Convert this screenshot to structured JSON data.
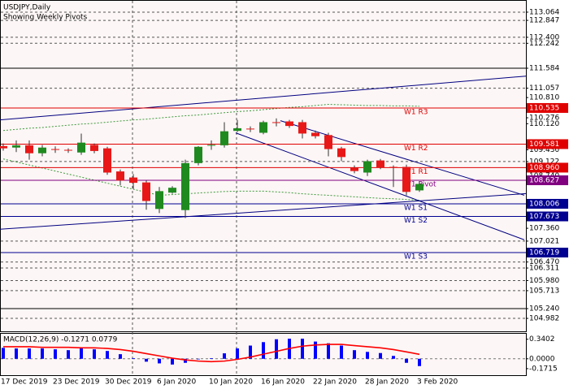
{
  "chart_data": [
    {
      "type": "candlestick",
      "title": "USDJPY,Daily",
      "subtitle": "Showing Weekly Pivots",
      "categories": [
        "17 Dec 2019",
        null,
        null,
        null,
        "23 Dec 2019",
        null,
        null,
        null,
        "30 Dec 2019",
        null,
        null,
        null,
        "6 Jan 2020",
        null,
        null,
        null,
        "10 Jan 2020",
        null,
        null,
        null,
        "16 Jan 2020",
        null,
        null,
        null,
        "22 Jan 2020",
        null,
        null,
        null,
        "28 Jan 2020",
        null,
        null,
        null,
        "3 Feb 2020"
      ],
      "open": [
        109.53,
        109.49,
        109.55,
        109.34,
        109.45,
        109.43,
        109.36,
        109.56,
        109.47,
        108.86,
        108.7,
        108.57,
        107.87,
        108.3,
        107.84,
        109.08,
        109.55,
        109.55,
        109.93,
        109.99,
        109.88,
        110.16,
        110.18,
        110.16,
        109.88,
        109.82,
        109.47,
        108.96,
        108.83,
        109.15,
        108.98,
        108.98,
        108.36
      ],
      "high": [
        109.6,
        109.68,
        109.68,
        109.56,
        109.52,
        109.47,
        109.86,
        109.6,
        109.51,
        108.91,
        108.79,
        108.62,
        108.45,
        108.47,
        109.17,
        109.53,
        109.68,
        110.16,
        110.22,
        110.05,
        110.2,
        110.26,
        110.22,
        110.22,
        109.94,
        109.88,
        109.51,
        109.02,
        109.17,
        109.19,
        109.02,
        109.04,
        108.59
      ],
      "low": [
        109.41,
        109.37,
        109.17,
        109.26,
        109.35,
        109.35,
        109.3,
        109.34,
        108.77,
        108.49,
        108.4,
        107.85,
        107.76,
        108.27,
        107.63,
        109.02,
        109.43,
        109.49,
        109.9,
        109.9,
        109.84,
        110.05,
        110.01,
        109.73,
        109.73,
        109.26,
        109.13,
        108.81,
        108.74,
        108.92,
        108.45,
        108.23,
        108.32
      ],
      "close": [
        109.47,
        109.55,
        109.34,
        109.49,
        109.43,
        109.41,
        109.62,
        109.4,
        108.83,
        108.62,
        108.56,
        108.08,
        108.34,
        108.43,
        109.08,
        109.51,
        109.56,
        109.92,
        110.0,
        109.97,
        110.16,
        110.14,
        110.06,
        109.86,
        109.79,
        109.45,
        109.24,
        108.87,
        109.13,
        108.96,
        108.96,
        108.32,
        108.53
      ],
      "up_color": "#1f8a1f",
      "down_color": "#e81818",
      "wick_color": "#333333",
      "ylim": [
        104.64,
        113.363
      ],
      "yticks": [
        113.064,
        112.847,
        {
          "value": 112.4,
          "label": "112.400"
        },
        112.242,
        111.584,
        111.057,
        {
          "value": 110.81,
          "label": "110.810"
        },
        110.276,
        {
          "value": 110.12,
          "label": "110.120"
        },
        {
          "value": 109.43,
          "label": "109.430"
        },
        109.122,
        {
          "value": 108.74,
          "label": "108.740"
        },
        {
          "value": 107.36,
          "label": "107.360"
        },
        107.021,
        {
          "value": 106.47,
          "label": "106.470"
        },
        106.311,
        {
          "value": 105.98,
          "label": "105.980"
        },
        105.713,
        {
          "value": 105.24,
          "label": "105.240"
        },
        104.982
      ],
      "hlines": [
        {
          "value": 113.064,
          "style": "dashed"
        },
        {
          "value": 112.847,
          "style": "dashed"
        },
        {
          "value": 112.4,
          "style": "dashed"
        },
        {
          "value": 112.242,
          "style": "dashed"
        },
        {
          "value": 111.584,
          "style": "solid"
        },
        {
          "value": 111.057,
          "style": "dashed"
        },
        {
          "value": 109.122,
          "style": "dashed"
        },
        {
          "value": 107.021,
          "style": "dashed"
        },
        {
          "value": 106.47,
          "style": "dashed"
        },
        {
          "value": 106.311,
          "style": "dashed"
        },
        {
          "value": 105.98,
          "style": "dashed"
        },
        {
          "value": 105.713,
          "style": "dashed"
        },
        {
          "value": 105.24,
          "style": "solid"
        },
        {
          "value": 104.982,
          "style": "dashed"
        }
      ],
      "pivots": [
        {
          "name": "W1 R3",
          "value": 110.535,
          "color": "#e00000"
        },
        {
          "name": "W1 R2",
          "value": 109.581,
          "color": "#e00000"
        },
        {
          "name": "W1 R1",
          "value": 108.96,
          "label": "108.960",
          "color": "#e00000"
        },
        {
          "name": "W1 Pivot",
          "value": 108.627,
          "color": "#800080"
        },
        {
          "name": "W1 S1",
          "value": 108.006,
          "color": "#000090"
        },
        {
          "name": "W1 S2",
          "value": 107.673,
          "color": "#000090"
        },
        {
          "name": "W1 S3",
          "value": 106.719,
          "color": "#000090"
        }
      ],
      "trendlines": [
        {
          "x": [
            -0.25,
            40.19
          ],
          "y": [
            110.22,
            111.375
          ],
          "color": "#00007f"
        },
        {
          "x": [
            -0.25,
            40.19
          ],
          "y": [
            107.334,
            108.275
          ],
          "color": "#00007f"
        },
        {
          "x": [
            17.875,
            40.06
          ],
          "y": [
            109.878,
            107.056
          ],
          "color": "#00007f"
        },
        {
          "x": [
            21.31,
            40.06
          ],
          "y": [
            110.199,
            108.232
          ],
          "color": "#00007f"
        }
      ],
      "envelopes": [
        {
          "color": "#3a9a3a",
          "values": [
            109.94,
            109.97,
            110.0,
            110.02,
            110.05,
            110.08,
            110.11,
            110.13,
            110.16,
            110.19,
            110.22,
            110.24,
            110.27,
            110.3,
            110.33,
            110.35,
            110.38,
            110.41,
            110.44,
            110.46,
            110.49,
            110.52,
            110.55,
            110.57,
            110.6,
            110.63,
            110.62,
            110.61,
            110.6,
            110.6,
            110.59,
            110.59,
            110.58
          ]
        },
        {
          "color": "#3a9a3a",
          "values": [
            109.19,
            109.11,
            109.03,
            108.95,
            108.87,
            108.79,
            108.71,
            108.63,
            108.55,
            108.47,
            108.39,
            108.31,
            108.23,
            108.25,
            108.27,
            108.29,
            108.31,
            108.33,
            108.34,
            108.34,
            108.34,
            108.32,
            108.3,
            108.27,
            108.25,
            108.23,
            108.21,
            108.19,
            108.17,
            108.15,
            108.14,
            108.12,
            108.1
          ]
        }
      ]
    },
    {
      "type": "macd",
      "title": "MACD(12,26,9) -0.1271 0.0779",
      "series": [
        {
          "type": "bar",
          "color": "#0000ff",
          "values": [
            0.19,
            0.18,
            0.18,
            0.18,
            0.165,
            0.15,
            0.18,
            0.165,
            0.136,
            0.08,
            0.01,
            -0.05,
            -0.08,
            -0.1,
            -0.07,
            -0.01,
            0.01,
            0.095,
            0.18,
            0.23,
            0.29,
            0.34,
            0.35,
            0.35,
            0.3,
            0.27,
            0.23,
            0.15,
            0.12,
            0.1,
            0.05,
            -0.07,
            -0.1271
          ]
        },
        {
          "type": "line",
          "color": "#ff0000",
          "values": [
            0.21,
            0.21,
            0.21,
            0.2,
            0.2,
            0.2,
            0.19,
            0.19,
            0.18,
            0.16,
            0.13,
            0.09,
            0.05,
            0.01,
            -0.02,
            -0.04,
            -0.05,
            -0.04,
            -0.01,
            0.03,
            0.08,
            0.13,
            0.18,
            0.22,
            0.24,
            0.25,
            0.25,
            0.23,
            0.21,
            0.19,
            0.16,
            0.12,
            0.0779
          ]
        }
      ],
      "ylim": [
        -0.2857,
        0.4354
      ],
      "yticks": [
        0.3402,
        {
          "value": 0,
          "label": "0.0000"
        },
        -0.1715
      ],
      "zero_line": true
    }
  ]
}
